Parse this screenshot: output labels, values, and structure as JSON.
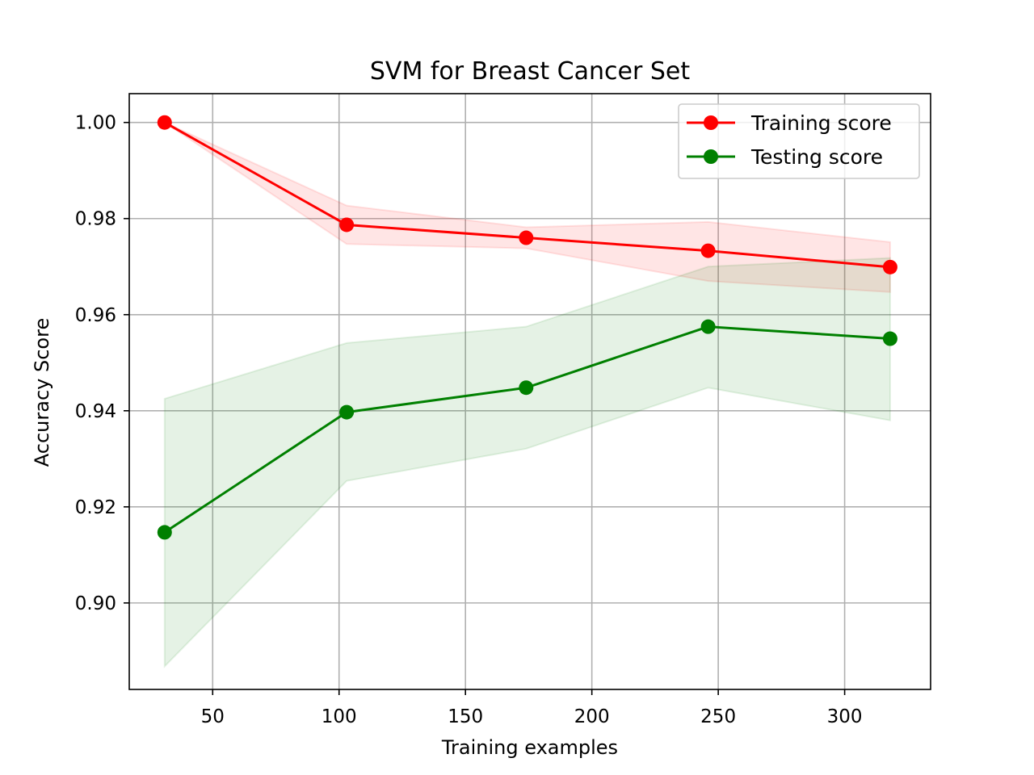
{
  "chart_data": {
    "type": "line",
    "title": "SVM for Breast Cancer Set",
    "xlabel": "Training examples",
    "ylabel": "Accuracy Score",
    "x": [
      31,
      103,
      174,
      246,
      318
    ],
    "xlim": [
      17,
      334
    ],
    "ylim": [
      0.882,
      1.006
    ],
    "xticks": [
      50,
      100,
      150,
      200,
      250,
      300
    ],
    "xtick_labels": [
      "50",
      "100",
      "150",
      "200",
      "250",
      "300"
    ],
    "yticks": [
      0.9,
      0.92,
      0.94,
      0.96,
      0.98,
      1.0
    ],
    "ytick_labels": [
      "0.90",
      "0.92",
      "0.94",
      "0.96",
      "0.98",
      "1.00"
    ],
    "grid": true,
    "legend_position": "top-right",
    "series": [
      {
        "name": "Training score",
        "color": "#ff0000",
        "values": [
          1.0,
          0.9787,
          0.976,
          0.9733,
          0.9699
        ],
        "band_lower": [
          1.0,
          0.9747,
          0.9738,
          0.967,
          0.9647
        ],
        "band_upper": [
          1.0,
          0.9827,
          0.9782,
          0.9793,
          0.9751
        ]
      },
      {
        "name": "Testing score",
        "color": "#008000",
        "values": [
          0.9147,
          0.9397,
          0.9448,
          0.9575,
          0.955
        ],
        "band_lower": [
          0.8868,
          0.9254,
          0.9321,
          0.9448,
          0.938
        ],
        "band_upper": [
          0.9425,
          0.9541,
          0.9575,
          0.97,
          0.9718
        ]
      }
    ]
  }
}
